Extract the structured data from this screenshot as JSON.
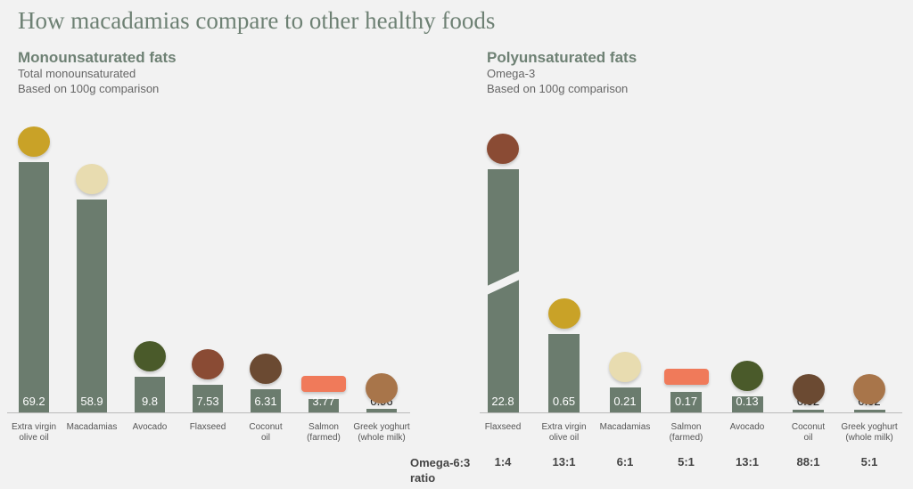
{
  "title": "How macadamias compare to other healthy foods",
  "chart_data": [
    {
      "type": "bar",
      "title": "Monounsaturated fats",
      "subtitle": "Total monounsaturated",
      "note": "Based on 100g comparison",
      "categories": [
        "Extra virgin\nolive oil",
        "Macadamias",
        "Avocado",
        "Flaxseed",
        "Coconut\noil",
        "Salmon\n(farmed)",
        "Greek yoghurt\n(whole milk)"
      ],
      "values": [
        69.2,
        58.9,
        9.8,
        7.53,
        6.31,
        3.77,
        0.96
      ],
      "color": "#6b7c6e"
    },
    {
      "type": "bar",
      "title": "Polyunsaturated fats",
      "subtitle": "Omega-3",
      "note": "Based on 100g comparison",
      "categories": [
        "Flaxseed",
        "Extra virgin\nolive oil",
        "Macadamias",
        "Salmon\n(farmed)",
        "Avocado",
        "Coconut\noil",
        "Greek yoghurt\n(whole milk)"
      ],
      "values": [
        22.8,
        0.65,
        0.21,
        0.17,
        0.13,
        0.02,
        0.02
      ],
      "color": "#6b7c6e",
      "ratio_label": "Omega-6:3\nratio",
      "ratios": [
        "1:4",
        "13:1",
        "6:1",
        "5:1",
        "13:1",
        "88:1",
        "5:1"
      ]
    }
  ]
}
